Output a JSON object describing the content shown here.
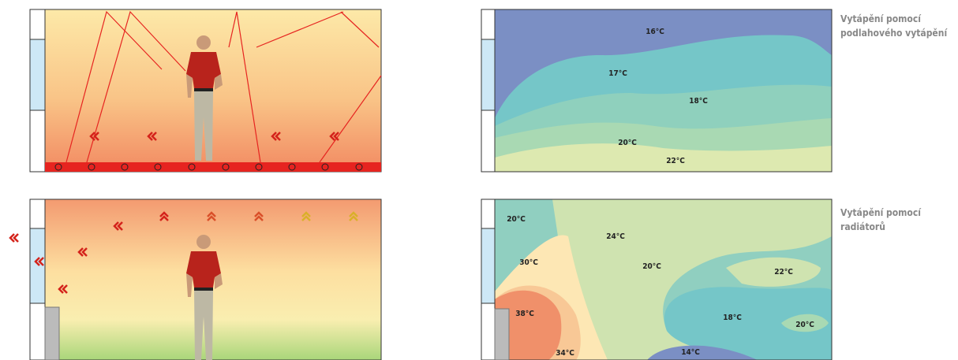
{
  "rows": [
    {
      "caption": [
        "Vytápění pomocí",
        "podlahového vytápění"
      ],
      "temperatures": [
        "16°C",
        "17°C",
        "18°C",
        "20°C",
        "22°C"
      ]
    },
    {
      "caption": [
        "Vytápění pomocí",
        "radiátorů"
      ],
      "temperatures": [
        "20°C",
        "24°C",
        "30°C",
        "20°C",
        "22°C",
        "38°C",
        "18°C",
        "20°C",
        "34°C",
        "14°C"
      ]
    }
  ]
}
